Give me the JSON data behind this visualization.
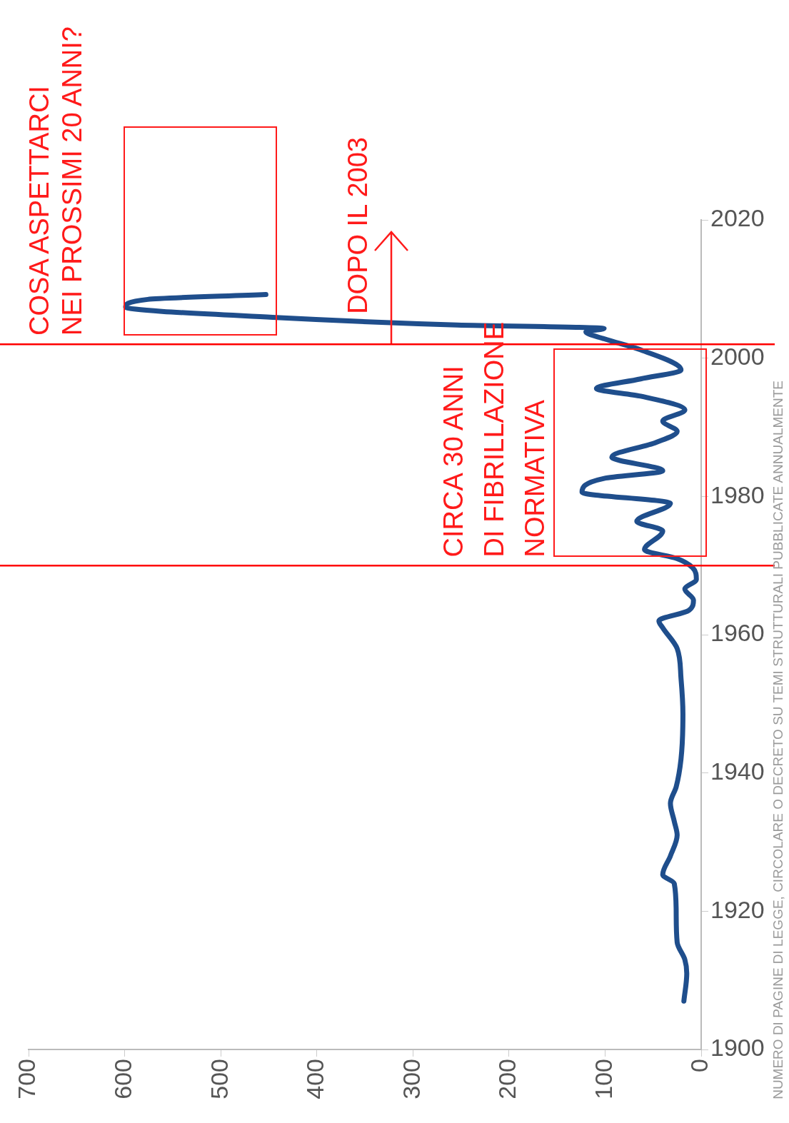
{
  "chart_data": {
    "type": "line",
    "x": [
      1907,
      1911,
      1913,
      1915.5,
      1919.6,
      1924,
      1925.3,
      1928,
      1931,
      1933,
      1935.6,
      1938,
      1942,
      1948.5,
      1953.7,
      1958,
      1961,
      1962,
      1963.5,
      1965,
      1966.6,
      1968,
      1969.7,
      1971,
      1972.3,
      1975,
      1976.4,
      1979,
      1980.6,
      1982.6,
      1983.7,
      1985.7,
      1987.8,
      1989.4,
      1990.9,
      1992.5,
      1994.5,
      1995.6,
      1997,
      1998.3,
      2001.2,
      2002.8,
      2003.8,
      2004.3,
      2004.8,
      2005.9,
      2007.4,
      2008.5,
      2009.2
    ],
    "series": [
      {
        "color": "#1f4e8c",
        "values": [
          18,
          15,
          17,
          25,
          26,
          28,
          40,
          32,
          25,
          28,
          32,
          26,
          21,
          19,
          21,
          25,
          40,
          44,
          13,
          8,
          17,
          5,
          9,
          25,
          59,
          40,
          67,
          32,
          124,
          101,
          40,
          93,
          47,
          25,
          40,
          17,
          63,
          109,
          63,
          21,
          63,
          101,
          120,
          101,
          254,
          446,
          599,
          576,
          453
        ]
      }
    ],
    "orientation": "horizontal",
    "xlim": [
      700,
      0
    ],
    "xticks": [
      0,
      100,
      200,
      300,
      400,
      500,
      600,
      700
    ],
    "ylim": [
      1900,
      2020
    ],
    "yticks": [
      1900,
      1920,
      1940,
      1960,
      1980,
      2000,
      2020
    ],
    "grid": false,
    "legend": false,
    "line_style": "solid",
    "marker": "none",
    "ref_lines": [
      {
        "axis": "y",
        "value": 1970,
        "color": "#ff0000"
      },
      {
        "axis": "y",
        "value": 2002,
        "color": "#ff0000"
      }
    ],
    "annotations": [
      "COSA ASPETTARCI\nNEI PROSSIMI 20 ANNI?",
      "DOPO IL 2003",
      "CIRCA 30 ANNI\nDI FIBRILLAZIONE\nNORMATIVA",
      "NUMERO DI PAGINE DI LEGGE, CIRCOLARE O DECRETO SU TEMI STRUTTURALI PUBBLICATE ANNUALMENTE"
    ]
  }
}
